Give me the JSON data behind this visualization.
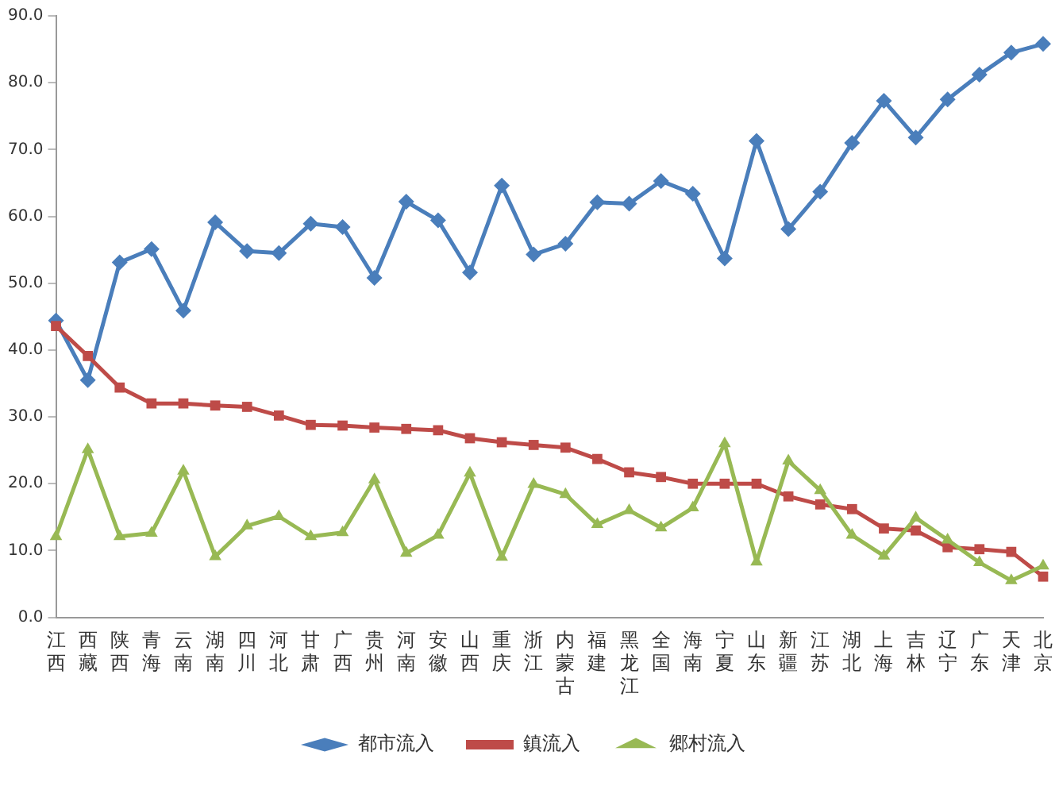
{
  "chart_data": {
    "type": "line",
    "categories": [
      "江西",
      "西藏",
      "陕西",
      "青海",
      "云南",
      "湖南",
      "四川",
      "河北",
      "甘肃",
      "广西",
      "贵州",
      "河南",
      "安徽",
      "山西",
      "重庆",
      "浙江",
      "内蒙古",
      "福建",
      "黑龙江",
      "全国",
      "海南",
      "宁夏",
      "山东",
      "新疆",
      "江苏",
      "湖北",
      "上海",
      "吉林",
      "辽宁",
      "广东",
      "天津",
      "北京"
    ],
    "series": [
      {
        "name": "都市流入",
        "color": "#4a7ebb",
        "marker": "diamond",
        "values": [
          44.4,
          35.5,
          53.1,
          55.1,
          45.9,
          59.1,
          54.8,
          54.5,
          58.9,
          58.4,
          50.8,
          62.2,
          59.4,
          51.6,
          64.6,
          54.3,
          55.9,
          62.1,
          61.9,
          65.3,
          63.4,
          53.7,
          71.3,
          58.1,
          63.7,
          71.0,
          77.3,
          71.8,
          77.5,
          81.2,
          84.5,
          85.8
        ]
      },
      {
        "name": "鎮流入",
        "color": "#be4b48",
        "marker": "square",
        "values": [
          43.6,
          39.1,
          34.4,
          32.0,
          32.0,
          31.7,
          31.5,
          30.2,
          28.8,
          28.7,
          28.4,
          28.2,
          28.0,
          26.8,
          26.2,
          25.8,
          25.4,
          23.7,
          21.7,
          21.0,
          20.0,
          20.0,
          20.0,
          18.1,
          16.9,
          16.2,
          13.3,
          13.0,
          10.5,
          10.2,
          9.8,
          6.1
        ]
      },
      {
        "name": "郷村流入",
        "color": "#98b954",
        "marker": "triangle",
        "values": [
          12.1,
          25.1,
          12.1,
          12.6,
          21.9,
          9.1,
          13.7,
          15.1,
          12.1,
          12.7,
          20.6,
          9.6,
          12.3,
          21.6,
          9.0,
          19.9,
          18.4,
          13.9,
          16.0,
          13.4,
          16.4,
          26.0,
          8.3,
          23.4,
          19.0,
          12.3,
          9.2,
          14.9,
          11.6,
          8.2,
          5.5,
          7.7
        ]
      }
    ],
    "ylim": [
      0,
      90
    ],
    "yticks": [
      {
        "value": 0,
        "label": "0.0"
      },
      {
        "value": 10,
        "label": "10.0"
      },
      {
        "value": 20,
        "label": "20.0"
      },
      {
        "value": 30,
        "label": "30.0"
      },
      {
        "value": 40,
        "label": "40.0"
      },
      {
        "value": 50,
        "label": "50.0"
      },
      {
        "value": 60,
        "label": "60.0"
      },
      {
        "value": 70,
        "label": "70.0"
      },
      {
        "value": 80,
        "label": "80.0"
      },
      {
        "value": 90,
        "label": "90.0"
      }
    ],
    "grid": false,
    "legend": "bottom",
    "line_style": "solid"
  }
}
